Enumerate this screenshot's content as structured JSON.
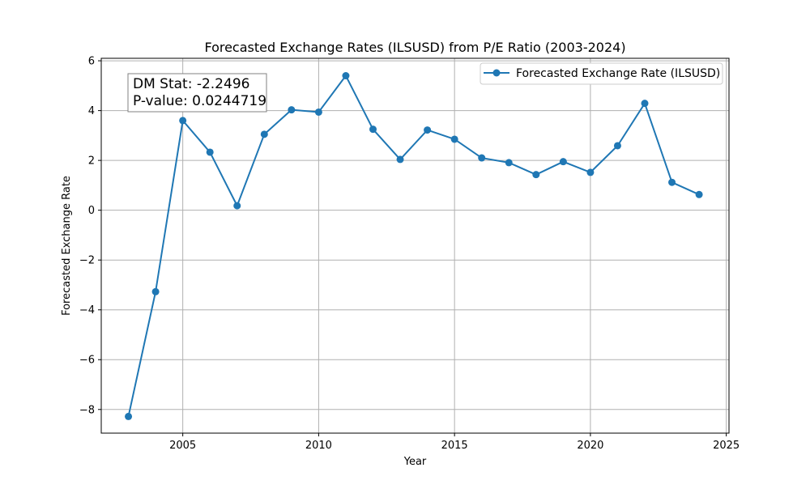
{
  "chart_data": {
    "type": "line",
    "title": "Forecasted Exchange Rates (ILSUSD) from P/E Ratio (2003-2024)",
    "xlabel": "Year",
    "ylabel": "Forecasted Exchange Rate",
    "xlim": [
      2002.0,
      2025.1
    ],
    "ylim": [
      -8.95,
      6.1
    ],
    "xticks": [
      2005,
      2010,
      2015,
      2020,
      2025
    ],
    "yticks": [
      -8,
      -6,
      -4,
      -2,
      0,
      2,
      4,
      6
    ],
    "xtick_labels": [
      "2005",
      "2010",
      "2015",
      "2020",
      "2025"
    ],
    "ytick_labels": [
      "−8",
      "−6",
      "−4",
      "−2",
      "0",
      "2",
      "4",
      "6"
    ],
    "grid": true,
    "legend_position": "top-right",
    "series": [
      {
        "name": "Forecasted Exchange Rate (ILSUSD)",
        "color": "#1f77b4",
        "marker": "circle",
        "x": [
          2003,
          2004,
          2005,
          2006,
          2007,
          2008,
          2009,
          2010,
          2011,
          2012,
          2013,
          2014,
          2015,
          2016,
          2017,
          2018,
          2019,
          2020,
          2021,
          2022,
          2023,
          2024
        ],
        "y": [
          -8.28,
          -3.27,
          3.6,
          2.33,
          0.18,
          3.05,
          4.03,
          3.94,
          5.4,
          3.25,
          2.04,
          3.22,
          2.85,
          2.1,
          1.91,
          1.43,
          1.95,
          1.52,
          2.59,
          4.29,
          1.12,
          0.63
        ]
      }
    ],
    "annotation": {
      "line1": "DM Stat: -2.2496",
      "line2": "P-value: 0.0244719"
    }
  }
}
